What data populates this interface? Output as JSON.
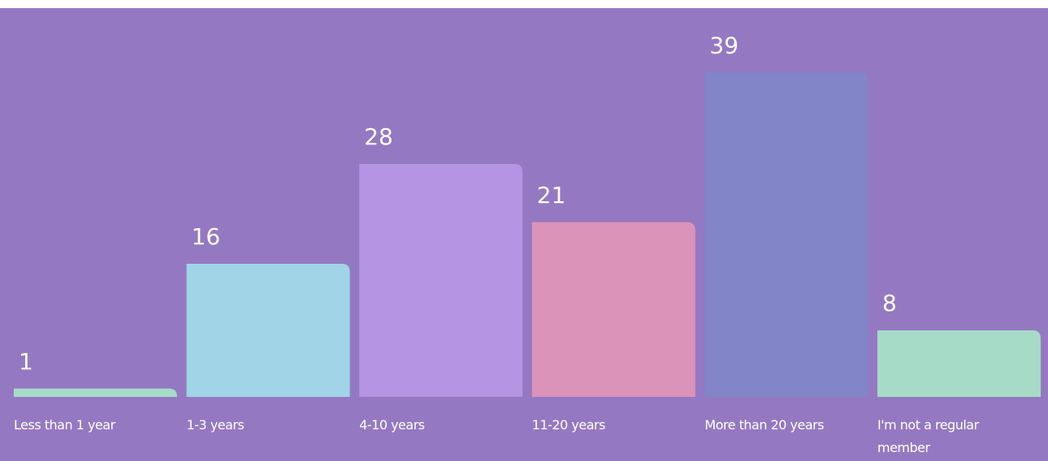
{
  "chart_data": {
    "type": "bar",
    "categories": [
      "Less than 1 year",
      "1-3 years",
      "4-10 years",
      "11-20 years",
      "More than 20 years",
      "I'm not a regular member"
    ],
    "values": [
      1,
      16,
      28,
      21,
      39,
      8
    ],
    "value_labels": [
      "1",
      "16",
      "28",
      "21",
      "39",
      "8"
    ],
    "bar_colors": [
      "#a6dcc7",
      "#a0d4e6",
      "#b594e4",
      "#dc93b9",
      "#8285c8",
      "#a6dcc7"
    ],
    "background_color": "#9479c2",
    "text_color": "#ffffff",
    "grid": false,
    "legend": "none",
    "title": "",
    "xlabel": "",
    "ylabel": ""
  }
}
